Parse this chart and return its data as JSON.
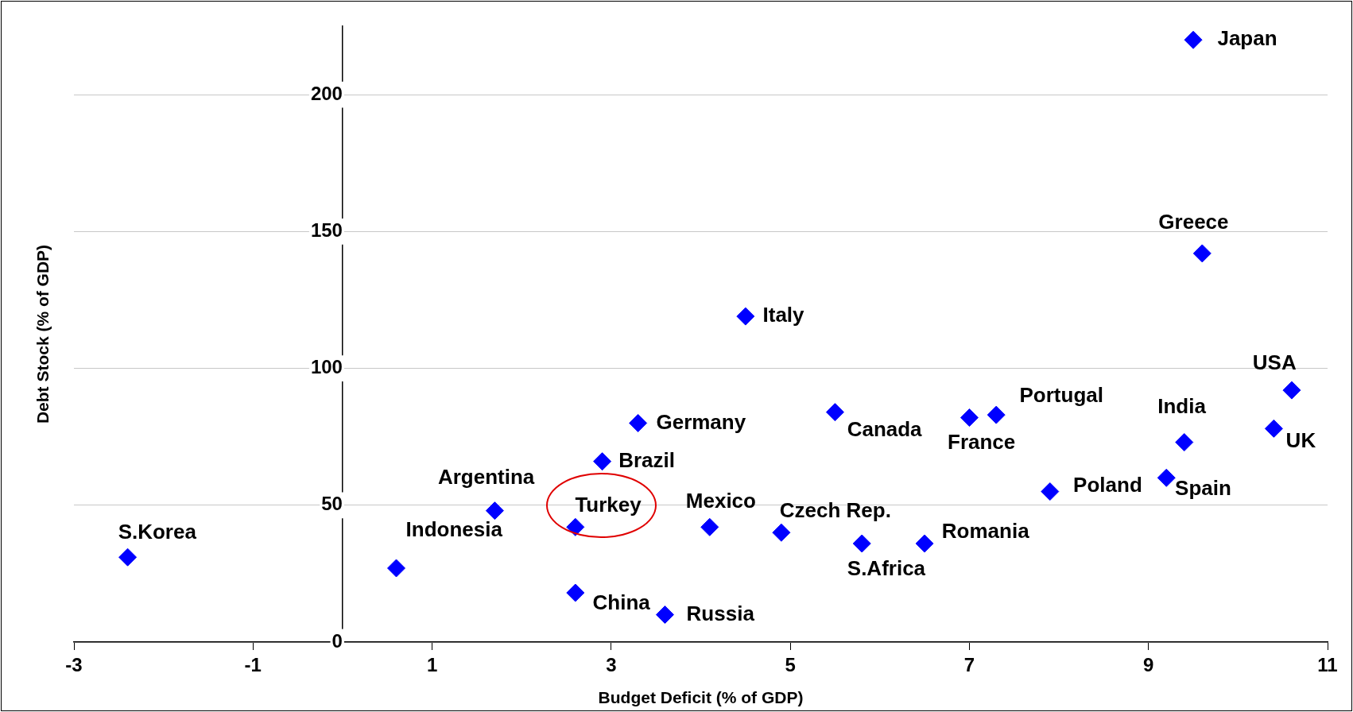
{
  "chart_data": {
    "type": "scatter",
    "xlabel": "Budget Deficit (% of GDP)",
    "ylabel": "Debt Stock (% of GDP)",
    "x": [
      9.5,
      9.6,
      4.5,
      10.6,
      10.4,
      9.4,
      9.2,
      7.9,
      7.3,
      7.0,
      5.5,
      3.3,
      2.9,
      1.7,
      2.6,
      4.1,
      4.9,
      5.8,
      6.5,
      0.6,
      -2.4,
      2.6,
      3.6
    ],
    "values": [
      220,
      142,
      119,
      92,
      78,
      73,
      60,
      55,
      83,
      82,
      84,
      80,
      66,
      48,
      42,
      42,
      40,
      36,
      36,
      27,
      31,
      18,
      10
    ],
    "color": "#0000ff",
    "marker": "diamond",
    "grid": "y",
    "legend": false,
    "xlim": [
      -3,
      11
    ],
    "xticks": [
      -3,
      -1,
      1,
      3,
      5,
      7,
      9,
      11
    ],
    "ylim": [
      0,
      225
    ],
    "yticks": [
      0,
      50,
      100,
      150,
      200
    ],
    "annotations": [
      {
        "text": "Japan",
        "x": 9.5,
        "y": 220
      },
      {
        "text": "Greece",
        "x": 9.6,
        "y": 142
      },
      {
        "text": "Italy",
        "x": 4.5,
        "y": 119
      },
      {
        "text": "USA",
        "x": 10.6,
        "y": 92
      },
      {
        "text": "UK",
        "x": 10.4,
        "y": 78
      },
      {
        "text": "India",
        "x": 9.4,
        "y": 73
      },
      {
        "text": "Spain",
        "x": 9.2,
        "y": 60
      },
      {
        "text": "Poland",
        "x": 7.9,
        "y": 55
      },
      {
        "text": "Portugal",
        "x": 7.3,
        "y": 83
      },
      {
        "text": "France",
        "x": 7.0,
        "y": 82
      },
      {
        "text": "Canada",
        "x": 5.5,
        "y": 84
      },
      {
        "text": "Germany",
        "x": 3.3,
        "y": 80
      },
      {
        "text": "Brazil",
        "x": 2.9,
        "y": 66
      },
      {
        "text": "Argentina",
        "x": 1.7,
        "y": 48
      },
      {
        "text": "Turkey",
        "x": 2.6,
        "y": 42
      },
      {
        "text": "Mexico",
        "x": 4.1,
        "y": 42
      },
      {
        "text": "Czech Rep.",
        "x": 4.9,
        "y": 40
      },
      {
        "text": "S.Africa",
        "x": 5.8,
        "y": 36
      },
      {
        "text": "Romania",
        "x": 6.5,
        "y": 36
      },
      {
        "text": "Indonesia",
        "x": 0.6,
        "y": 27
      },
      {
        "text": "S.Korea",
        "x": -2.4,
        "y": 31
      },
      {
        "text": "China",
        "x": 2.6,
        "y": 18
      },
      {
        "text": "Russia",
        "x": 3.6,
        "y": 10
      }
    ]
  }
}
